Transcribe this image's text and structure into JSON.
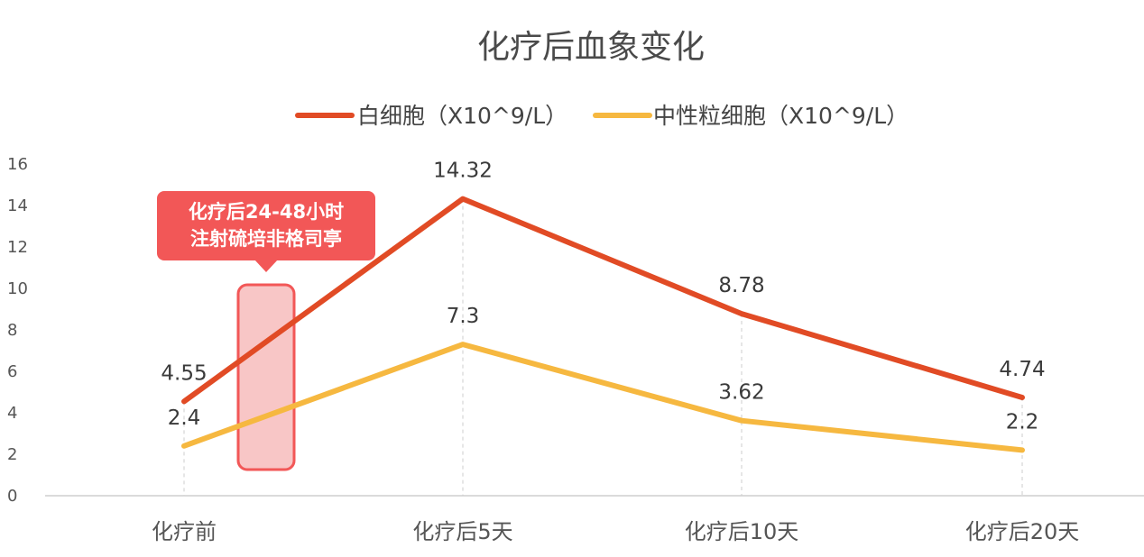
{
  "chart_data": {
    "type": "line",
    "title": "化疗后血象变化",
    "xlabel": "",
    "ylabel": "",
    "categories": [
      "化疗前",
      "化疗后5天",
      "化疗后10天",
      "化疗后20天"
    ],
    "ylim": [
      0,
      16
    ],
    "yticks": [
      "0",
      "2",
      "4",
      "6",
      "8",
      "10",
      "12",
      "14",
      "16"
    ],
    "legend_position": "top-center",
    "grid": false,
    "series": [
      {
        "name": "白细胞（X10^9/L）",
        "color": "#e14b25",
        "values": [
          4.55,
          14.32,
          8.78,
          4.74
        ],
        "labels": [
          "4.55",
          "14.32",
          "8.78",
          "4.74"
        ]
      },
      {
        "name": "中性粒细胞（X10^9/L）",
        "color": "#f6b840",
        "values": [
          2.4,
          7.3,
          3.62,
          2.2
        ],
        "labels": [
          "2.4",
          "7.3",
          "3.62",
          "2.2"
        ]
      }
    ],
    "annotation": {
      "lines": [
        "化疗后24-48小时",
        "注射硫培非格司亭"
      ],
      "color": "#f25757",
      "highlight_color": "#f8c6c6"
    }
  }
}
